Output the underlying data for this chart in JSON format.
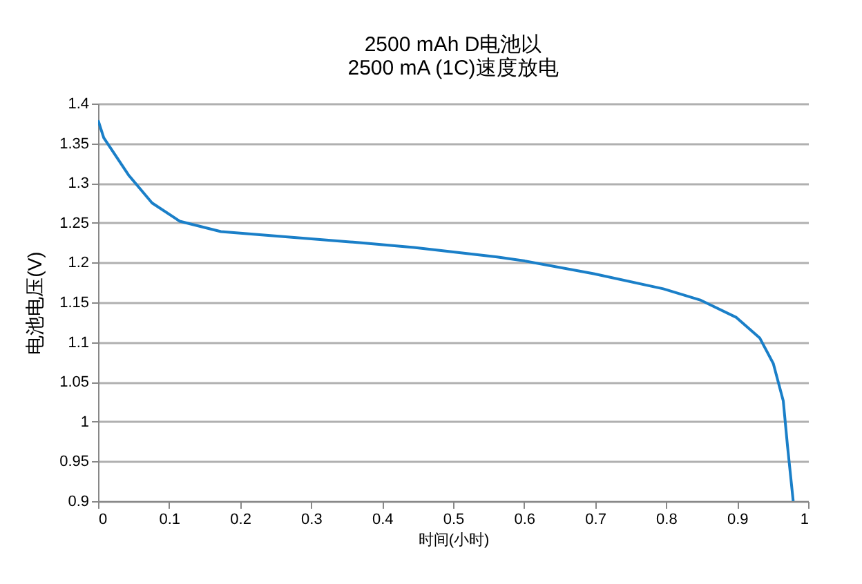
{
  "chart_data": {
    "type": "line",
    "title": "2500 mAh D电池以\n2500 mA (1C)速度放电",
    "xlabel": "时间(小时)",
    "ylabel": "电池电压(V)",
    "x": [
      0,
      0.008,
      0.043,
      0.076,
      0.115,
      0.173,
      0.27,
      0.368,
      0.445,
      0.562,
      0.601,
      0.698,
      0.796,
      0.848,
      0.899,
      0.932,
      0.951,
      0.965,
      0.971,
      0.979
    ],
    "series": [
      {
        "color": "#1a7fc8",
        "values": [
          1.379,
          1.357,
          1.31,
          1.275,
          1.252,
          1.239,
          1.232,
          1.225,
          1.219,
          1.207,
          1.202,
          1.186,
          1.167,
          1.153,
          1.131,
          1.105,
          1.073,
          1.026,
          0.969,
          0.9
        ]
      }
    ],
    "xlim": [
      0,
      1
    ],
    "xticks": [
      0,
      0.1,
      0.2,
      0.3,
      0.4,
      0.5,
      0.6,
      0.7,
      0.8,
      0.9,
      1
    ],
    "ylim": [
      0.9,
      1.4
    ],
    "yticks": [
      0.9,
      0.95,
      1,
      1.05,
      1.1,
      1.15,
      1.2,
      1.25,
      1.3,
      1.35,
      1.4
    ],
    "grid": "y"
  }
}
